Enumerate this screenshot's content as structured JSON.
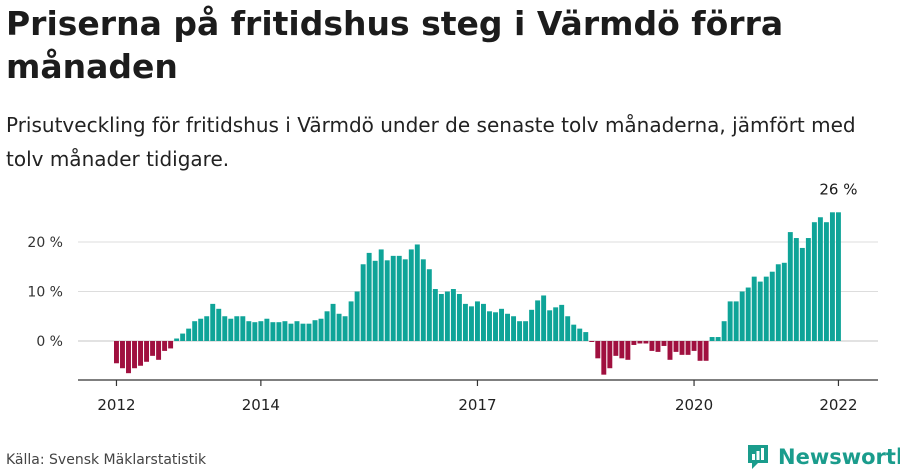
{
  "header": {
    "title": "Priserna på fritidshus steg i Värmdö förra månaden",
    "subtitle": "Prisutveckling för fritidshus i Värmdö under de senaste tolv månaderna, jämfört med tolv månader tidigare."
  },
  "footer": {
    "source": "Källa: Svensk Mäklarstatistik",
    "brand": "Newsworthy"
  },
  "colors": {
    "positive": "#0fa498",
    "negative": "#a0103f",
    "brand": "#1a9c8c"
  },
  "chart_data": {
    "type": "bar",
    "x_tick_labels": [
      "2012",
      "2014",
      "2017",
      "2020",
      "2022"
    ],
    "x_tick_dates": [
      "2012-01",
      "2014-01",
      "2017-01",
      "2020-01",
      "2022-01"
    ],
    "y_tick_labels": [
      "0 %",
      "10 %",
      "20 %"
    ],
    "y_ticks": [
      0,
      10,
      20
    ],
    "ylim": [
      -7.5,
      28
    ],
    "grid": true,
    "last_value_label": "26 %",
    "x": [
      "2012-01",
      "2012-02",
      "2012-03",
      "2012-04",
      "2012-05",
      "2012-06",
      "2012-07",
      "2012-08",
      "2012-09",
      "2012-10",
      "2012-11",
      "2012-12",
      "2013-01",
      "2013-02",
      "2013-03",
      "2013-04",
      "2013-05",
      "2013-06",
      "2013-07",
      "2013-08",
      "2013-09",
      "2013-10",
      "2013-11",
      "2013-12",
      "2014-01",
      "2014-02",
      "2014-03",
      "2014-04",
      "2014-05",
      "2014-06",
      "2014-07",
      "2014-08",
      "2014-09",
      "2014-10",
      "2014-11",
      "2014-12",
      "2015-01",
      "2015-02",
      "2015-03",
      "2015-04",
      "2015-05",
      "2015-06",
      "2015-07",
      "2015-08",
      "2015-09",
      "2015-10",
      "2015-11",
      "2015-12",
      "2016-01",
      "2016-02",
      "2016-03",
      "2016-04",
      "2016-05",
      "2016-06",
      "2016-07",
      "2016-08",
      "2016-09",
      "2016-10",
      "2016-11",
      "2016-12",
      "2017-01",
      "2017-02",
      "2017-03",
      "2017-04",
      "2017-05",
      "2017-06",
      "2017-07",
      "2017-08",
      "2017-09",
      "2017-10",
      "2017-11",
      "2017-12",
      "2018-01",
      "2018-02",
      "2018-03",
      "2018-04",
      "2018-05",
      "2018-06",
      "2018-07",
      "2018-08",
      "2018-09",
      "2018-10",
      "2018-11",
      "2018-12",
      "2019-01",
      "2019-02",
      "2019-03",
      "2019-04",
      "2019-05",
      "2019-06",
      "2019-07",
      "2019-08",
      "2019-09",
      "2019-10",
      "2019-11",
      "2019-12",
      "2020-01",
      "2020-02",
      "2020-03",
      "2020-04",
      "2020-05",
      "2020-06",
      "2020-07",
      "2020-08",
      "2020-09",
      "2020-10",
      "2020-11",
      "2020-12",
      "2021-01",
      "2021-02",
      "2021-03",
      "2021-04",
      "2021-05",
      "2021-06",
      "2021-07",
      "2021-08",
      "2021-09",
      "2021-10",
      "2021-11",
      "2021-12",
      "2022-01"
    ],
    "values": [
      -4.5,
      -5.5,
      -6.5,
      -5.5,
      -5,
      -4.2,
      -3,
      -3.8,
      -2,
      -1.5,
      0.5,
      1.5,
      2.5,
      4,
      4.5,
      5,
      7.5,
      6.5,
      5,
      4.5,
      5,
      5,
      4,
      3.8,
      4,
      4.5,
      3.8,
      3.8,
      4,
      3.5,
      4,
      3.5,
      3.5,
      4.2,
      4.5,
      6,
      7.5,
      5.5,
      5,
      8,
      10,
      15.5,
      17.8,
      16.2,
      18.5,
      16.3,
      17.2,
      17.2,
      16.5,
      18.5,
      19.5,
      16.5,
      14.5,
      10.5,
      9.5,
      10,
      10.5,
      9.5,
      7.5,
      7,
      8,
      7.5,
      6,
      5.8,
      6.5,
      5.5,
      5,
      4,
      4,
      6.3,
      8.2,
      9.2,
      6.2,
      6.8,
      7.3,
      5,
      3.3,
      2.5,
      1.8,
      -0.2,
      -3.5,
      -6.8,
      -5.5,
      -3,
      -3.5,
      -3.8,
      -0.8,
      -0.5,
      -0.5,
      -2,
      -2.2,
      -1,
      -3.8,
      -2.2,
      -2.8,
      -2.8,
      -2,
      -4,
      -4,
      0.8,
      0.8,
      4,
      8,
      8,
      10,
      10.8,
      13,
      12,
      13,
      14,
      15.5,
      15.8,
      22,
      20.8,
      18.8,
      20.8,
      24,
      25,
      24,
      26,
      26
    ]
  }
}
